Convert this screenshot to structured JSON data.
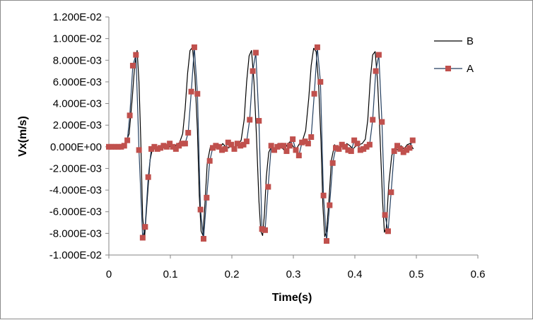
{
  "chart_data": {
    "type": "line",
    "title": "",
    "xlabel": "Time(s)",
    "ylabel": "Vx(m/s)",
    "xlim": [
      0,
      0.6
    ],
    "ylim": [
      -0.01,
      0.012
    ],
    "x_ticks": [
      {
        "value": 0,
        "label": "0"
      },
      {
        "value": 0.1,
        "label": "0.1"
      },
      {
        "value": 0.2,
        "label": "0.2"
      },
      {
        "value": 0.3,
        "label": "0.3"
      },
      {
        "value": 0.4,
        "label": "0.4"
      },
      {
        "value": 0.5,
        "label": "0.5"
      },
      {
        "value": 0.6,
        "label": "0.6"
      }
    ],
    "y_ticks": [
      {
        "value": 0.012,
        "label": "1.200E-02"
      },
      {
        "value": 0.01,
        "label": "1.000E-02"
      },
      {
        "value": 0.008,
        "label": "8.000E-03"
      },
      {
        "value": 0.006,
        "label": "6.000E-03"
      },
      {
        "value": 0.004,
        "label": "4.000E-03"
      },
      {
        "value": 0.002,
        "label": "2.000E-03"
      },
      {
        "value": 0,
        "label": "0.000E+00"
      },
      {
        "value": -0.002,
        "label": "-2.000E-03"
      },
      {
        "value": -0.004,
        "label": "-4.000E-03"
      },
      {
        "value": -0.006,
        "label": "-6.000E-03"
      },
      {
        "value": -0.008,
        "label": "-8.000E-03"
      },
      {
        "value": -0.01,
        "label": "-1.000E-02"
      }
    ],
    "grid": false,
    "legend_position": "right",
    "series": [
      {
        "name": "B",
        "color": "#000000",
        "marker": "none",
        "x": [
          0,
          0.01,
          0.02,
          0.027,
          0.033,
          0.038,
          0.042,
          0.046,
          0.049,
          0.052,
          0.055,
          0.058,
          0.062,
          0.067,
          0.072,
          0.078,
          0.084,
          0.09,
          0.095,
          0.1,
          0.105,
          0.11,
          0.115,
          0.12,
          0.124,
          0.128,
          0.132,
          0.136,
          0.14,
          0.144,
          0.147,
          0.15,
          0.153,
          0.156,
          0.16,
          0.165,
          0.17,
          0.175,
          0.18,
          0.185,
          0.19,
          0.195,
          0.2,
          0.205,
          0.21,
          0.215,
          0.22,
          0.224,
          0.228,
          0.232,
          0.236,
          0.24,
          0.244,
          0.247,
          0.25,
          0.253,
          0.256,
          0.26,
          0.265,
          0.27,
          0.275,
          0.28,
          0.285,
          0.29,
          0.295,
          0.3,
          0.305,
          0.31,
          0.315,
          0.32,
          0.325,
          0.329,
          0.333,
          0.337,
          0.341,
          0.345,
          0.348,
          0.351,
          0.354,
          0.358,
          0.362,
          0.367,
          0.372,
          0.377,
          0.382,
          0.387,
          0.392,
          0.397,
          0.402,
          0.407,
          0.412,
          0.417,
          0.421,
          0.425,
          0.429,
          0.433,
          0.437,
          0.441,
          0.445,
          0.448,
          0.451,
          0.455,
          0.46,
          0.465,
          0.47,
          0.475,
          0.48,
          0.485,
          0.49,
          0.495
        ],
        "values": [
          0,
          0,
          0.0001,
          0.0003,
          0.0012,
          0.0045,
          0.0075,
          0.0089,
          0.006,
          0.0005,
          -0.0065,
          -0.0084,
          -0.0052,
          -0.0012,
          0.0001,
          -0.0004,
          0,
          0.0002,
          -0.0002,
          0.0001,
          -0.0001,
          0.0002,
          0.0004,
          0.0012,
          0.0035,
          0.0068,
          0.0089,
          0.0092,
          0.0065,
          0.0015,
          -0.0045,
          -0.0078,
          -0.0082,
          -0.0055,
          -0.0015,
          0,
          -0.0003,
          0.0001,
          -0.0002,
          0.0003,
          0,
          -0.0001,
          0.0002,
          -0.0001,
          0.0002,
          0.0006,
          0.0025,
          0.006,
          0.0084,
          0.0089,
          0.006,
          0.001,
          -0.005,
          -0.0078,
          -0.0082,
          -0.0062,
          -0.0028,
          -0.0005,
          0.0001,
          -0.0002,
          0.0003,
          0,
          -0.0003,
          0.0002,
          0.0005,
          0,
          -0.0002,
          0.0003,
          0.0006,
          0.0015,
          0.0045,
          0.0075,
          0.0091,
          0.0088,
          0.0058,
          0.0005,
          -0.0055,
          -0.0083,
          -0.0078,
          -0.0048,
          -0.0012,
          0.0002,
          -0.0003,
          0.0001,
          -0.0001,
          0.0003,
          0.0001,
          -0.0002,
          0.0001,
          0.0002,
          0.0003,
          0.0007,
          0.0025,
          0.0062,
          0.0085,
          0.0088,
          0.006,
          0.0008,
          -0.005,
          -0.0079,
          -0.0075,
          -0.0035,
          -0.0008,
          -0.0001,
          -0.0003,
          0.0001,
          -0.0002,
          0.0002,
          0.0003,
          -0.0002
        ]
      },
      {
        "name": "A",
        "color": "#243f60",
        "marker": "square",
        "marker_color": "#c0504d",
        "x": [
          0,
          0.005,
          0.01,
          0.015,
          0.02,
          0.025,
          0.03,
          0.034,
          0.039,
          0.044,
          0.049,
          0.055,
          0.059,
          0.064,
          0.069,
          0.074,
          0.079,
          0.084,
          0.089,
          0.094,
          0.099,
          0.104,
          0.109,
          0.114,
          0.119,
          0.124,
          0.129,
          0.134,
          0.139,
          0.144,
          0.149,
          0.154,
          0.159,
          0.164,
          0.169,
          0.174,
          0.179,
          0.184,
          0.189,
          0.194,
          0.199,
          0.204,
          0.209,
          0.214,
          0.219,
          0.224,
          0.229,
          0.234,
          0.239,
          0.244,
          0.249,
          0.254,
          0.259,
          0.264,
          0.269,
          0.274,
          0.279,
          0.284,
          0.289,
          0.294,
          0.299,
          0.304,
          0.309,
          0.314,
          0.319,
          0.324,
          0.329,
          0.334,
          0.339,
          0.344,
          0.349,
          0.354,
          0.359,
          0.364,
          0.369,
          0.374,
          0.379,
          0.384,
          0.389,
          0.394,
          0.399,
          0.404,
          0.409,
          0.414,
          0.419,
          0.424,
          0.429,
          0.434,
          0.439,
          0.444,
          0.449,
          0.454,
          0.459,
          0.464,
          0.469,
          0.474,
          0.479,
          0.484,
          0.489,
          0.494
        ],
        "values": [
          0,
          0,
          0,
          0,
          0,
          0.0001,
          0.0006,
          0.0029,
          0.0075,
          0.0085,
          -0.0003,
          -0.0084,
          -0.0074,
          -0.0028,
          -0.0002,
          0,
          -0.0002,
          -0.0001,
          0.0001,
          0,
          0.0003,
          0,
          -0.0002,
          0.0001,
          0.0003,
          0.0003,
          0.0013,
          0.0051,
          0.0092,
          0.0049,
          -0.0058,
          -0.0085,
          -0.0047,
          -0.0013,
          -0.0001,
          0.0001,
          0,
          -0.0003,
          -0.0002,
          0.0004,
          0.0002,
          -0.0002,
          0.0003,
          0.0001,
          0.0002,
          0.0005,
          0.0025,
          0.007,
          0.0087,
          0.0024,
          -0.0076,
          -0.0077,
          -0.0037,
          0.0001,
          -0.0003,
          0,
          0.0001,
          0.0001,
          -0.0004,
          0.0001,
          0.0007,
          -0.0003,
          -0.0008,
          0.0004,
          0.0005,
          0.0003,
          0.0009,
          0.0049,
          0.0092,
          0.006,
          -0.0045,
          -0.0087,
          -0.0054,
          -0.0015,
          -0.0001,
          -0.0002,
          0.0002,
          0,
          -0.0003,
          -0.0004,
          0.0006,
          0.0003,
          -0.0003,
          -0.0002,
          0,
          0.0002,
          0.0025,
          0.007,
          0.0085,
          0.0023,
          -0.0063,
          -0.0078,
          -0.0042,
          -0.0004,
          0.0001,
          -0.0002,
          -0.0005,
          -0.0003,
          -0.0001,
          0.0006
        ]
      }
    ]
  }
}
